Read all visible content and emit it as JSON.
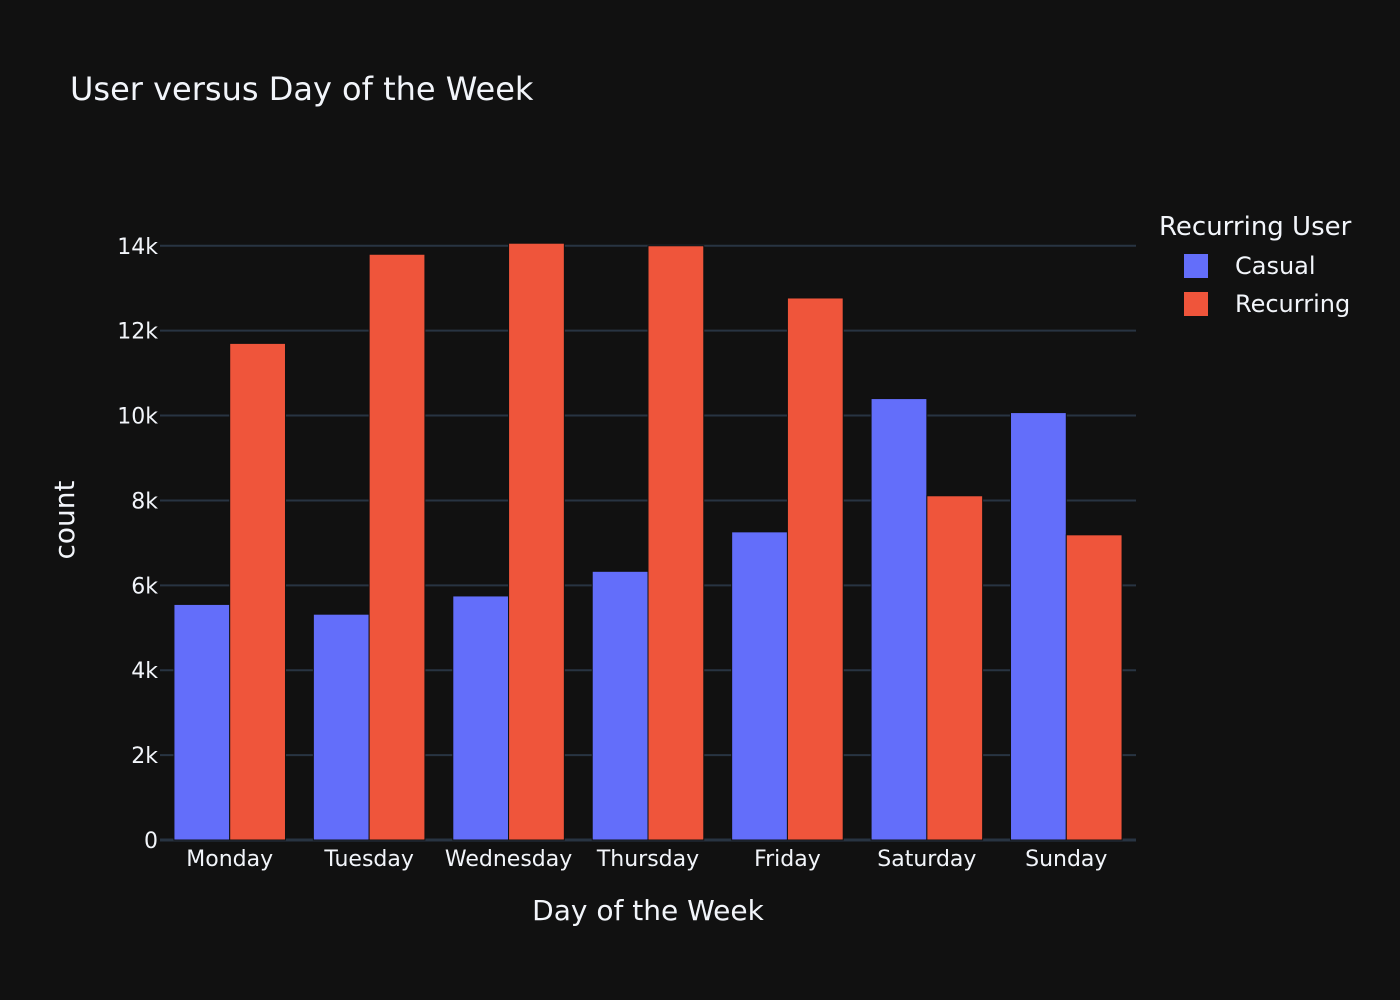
{
  "chart_data": {
    "type": "bar",
    "title": "User  versus Day of the Week",
    "xlabel": "Day of the Week",
    "ylabel": "count",
    "categories": [
      "Monday",
      "Tuesday",
      "Wednesday",
      "Thursday",
      "Friday",
      "Saturday",
      "Sunday"
    ],
    "series": [
      {
        "name": "Casual",
        "color": "#636efa",
        "values": [
          5550,
          5320,
          5750,
          6330,
          7260,
          10400,
          10070
        ]
      },
      {
        "name": "Recurring",
        "color": "#ef553b",
        "values": [
          11700,
          13800,
          14060,
          14000,
          12770,
          8110,
          7190
        ]
      }
    ],
    "ylim": [
      0,
      14560
    ],
    "yticks": [
      0,
      2000,
      4000,
      6000,
      8000,
      10000,
      12000,
      14000
    ],
    "ytick_labels": [
      "0",
      "2k",
      "4k",
      "6k",
      "8k",
      "10k",
      "12k",
      "14k"
    ],
    "grid": true,
    "legend": {
      "title": "Recurring User",
      "position": "top-right"
    },
    "background": "#111111",
    "grid_color": "#283442",
    "text_color": "#f2f5fa"
  }
}
